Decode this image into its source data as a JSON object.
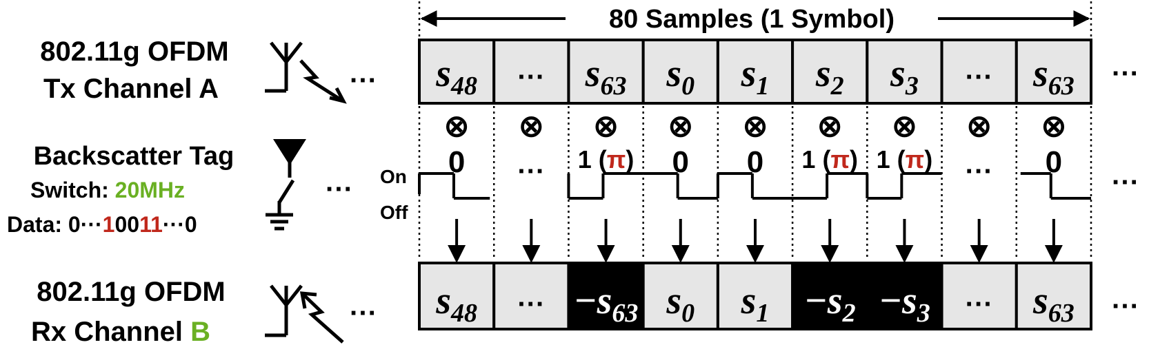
{
  "header": {
    "title": "80 Samples (1 Symbol)"
  },
  "tx": {
    "line1": "802.11g OFDM",
    "line2": "Tx Channel A"
  },
  "tag": {
    "title": "Backscatter Tag",
    "switch_label": "Switch: ",
    "switch_value": "20MHz",
    "data_label": "Data: ",
    "data_prefix": "0···",
    "data_red1": "1",
    "data_mid": "00",
    "data_red2": "11",
    "data_suffix": "···0",
    "on_label": "On",
    "off_label": "Off"
  },
  "rx": {
    "line1": "802.11g OFDM",
    "line2_prefix": "Rx Channel ",
    "line2_channel": "B"
  },
  "ellipsis": "···",
  "multiply_symbol": "⊗",
  "pi_symbol": "π",
  "tx_cells": [
    {
      "base": "s",
      "sub": "48"
    },
    {
      "base": "···",
      "sub": ""
    },
    {
      "base": "s",
      "sub": "63"
    },
    {
      "base": "s",
      "sub": "0"
    },
    {
      "base": "s",
      "sub": "1"
    },
    {
      "base": "s",
      "sub": "2"
    },
    {
      "base": "s",
      "sub": "3"
    },
    {
      "base": "···",
      "sub": ""
    },
    {
      "base": "s",
      "sub": "63"
    }
  ],
  "phase": [
    {
      "one": "0",
      "pi": false
    },
    {
      "one": "···",
      "pi": false
    },
    {
      "one": "1",
      "pi": true
    },
    {
      "one": "0",
      "pi": false
    },
    {
      "one": "0",
      "pi": false
    },
    {
      "one": "1",
      "pi": true
    },
    {
      "one": "1",
      "pi": true
    },
    {
      "one": "···",
      "pi": false
    },
    {
      "one": "0",
      "pi": false
    }
  ],
  "rx_cells": [
    {
      "base": "s",
      "sub": "48",
      "neg": false
    },
    {
      "base": "···",
      "sub": "",
      "neg": false
    },
    {
      "base": "−s",
      "sub": "63",
      "neg": true
    },
    {
      "base": "s",
      "sub": "0",
      "neg": false
    },
    {
      "base": "s",
      "sub": "1",
      "neg": false
    },
    {
      "base": "−s",
      "sub": "2",
      "neg": true
    },
    {
      "base": "−s",
      "sub": "3",
      "neg": true
    },
    {
      "base": "···",
      "sub": "",
      "neg": false
    },
    {
      "base": "s",
      "sub": "63",
      "neg": false
    }
  ],
  "colors": {
    "accent_red": "#c0281c",
    "accent_green": "#6ab023",
    "cell_fill": "#e6e6e6",
    "neg_fill": "#000000"
  }
}
